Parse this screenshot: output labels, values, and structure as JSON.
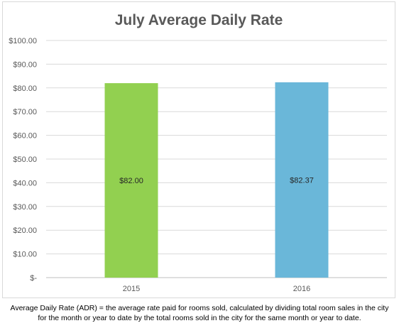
{
  "chart_data": {
    "type": "bar",
    "title": "July Average Daily Rate",
    "categories": [
      "2015",
      "2016"
    ],
    "values": [
      82.0,
      82.37
    ],
    "data_labels": [
      "$82.00",
      "$82.37"
    ],
    "bar_colors": [
      "#92d050",
      "#6ab7d9"
    ],
    "ylim": [
      0,
      100
    ],
    "yticks": [
      0,
      10,
      20,
      30,
      40,
      50,
      60,
      70,
      80,
      90,
      100
    ],
    "ytick_labels": [
      "$-",
      "$10.00",
      "$20.00",
      "$30.00",
      "$40.00",
      "$50.00",
      "$60.00",
      "$70.00",
      "$80.00",
      "$90.00",
      "$100.00"
    ],
    "grid": true,
    "legend": "none"
  },
  "footnote": {
    "line1": "Average Daily Rate (ADR) = the average rate paid for rooms sold, calculated by dividing total room sales in the city",
    "line2": "for the month or year to date by the total rooms sold in the city for the same month or year to date."
  }
}
